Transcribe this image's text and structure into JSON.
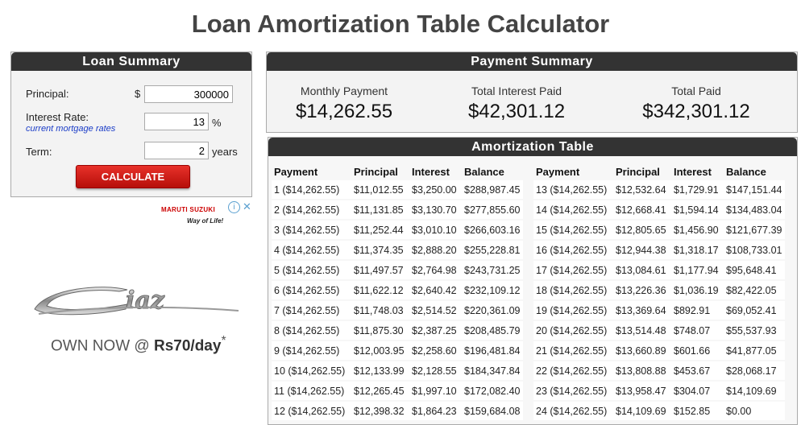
{
  "title": "Loan Amortization Table Calculator",
  "loan_summary": {
    "heading": "Loan Summary",
    "principal_label": "Principal:",
    "currency_symbol": "$",
    "principal_value": "300000",
    "interest_label": "Interest Rate:",
    "interest_link": "current mortgage rates",
    "interest_value": "13",
    "interest_unit": "%",
    "term_label": "Term:",
    "term_value": "2",
    "term_unit": "years",
    "calculate_label": "CALCULATE"
  },
  "payment_summary": {
    "heading": "Payment Summary",
    "monthly_label": "Monthly Payment",
    "monthly_value": "$14,262.55",
    "interest_label": "Total Interest Paid",
    "interest_value": "$42,301.12",
    "total_label": "Total Paid",
    "total_value": "$342,301.12"
  },
  "amortization": {
    "heading": "Amortization Table",
    "columns": [
      "Payment",
      "Principal",
      "Interest",
      "Balance"
    ],
    "left_rows": [
      [
        "1 ($14,262.55)",
        "$11,012.55",
        "$3,250.00",
        "$288,987.45"
      ],
      [
        "2 ($14,262.55)",
        "$11,131.85",
        "$3,130.70",
        "$277,855.60"
      ],
      [
        "3 ($14,262.55)",
        "$11,252.44",
        "$3,010.10",
        "$266,603.16"
      ],
      [
        "4 ($14,262.55)",
        "$11,374.35",
        "$2,888.20",
        "$255,228.81"
      ],
      [
        "5 ($14,262.55)",
        "$11,497.57",
        "$2,764.98",
        "$243,731.25"
      ],
      [
        "6 ($14,262.55)",
        "$11,622.12",
        "$2,640.42",
        "$232,109.12"
      ],
      [
        "7 ($14,262.55)",
        "$11,748.03",
        "$2,514.52",
        "$220,361.09"
      ],
      [
        "8 ($14,262.55)",
        "$11,875.30",
        "$2,387.25",
        "$208,485.79"
      ],
      [
        "9 ($14,262.55)",
        "$12,003.95",
        "$2,258.60",
        "$196,481.84"
      ],
      [
        "10 ($14,262.55)",
        "$12,133.99",
        "$2,128.55",
        "$184,347.84"
      ],
      [
        "11 ($14,262.55)",
        "$12,265.45",
        "$1,997.10",
        "$172,082.40"
      ],
      [
        "12 ($14,262.55)",
        "$12,398.32",
        "$1,864.23",
        "$159,684.08"
      ]
    ],
    "right_rows": [
      [
        "13 ($14,262.55)",
        "$12,532.64",
        "$1,729.91",
        "$147,151.44"
      ],
      [
        "14 ($14,262.55)",
        "$12,668.41",
        "$1,594.14",
        "$134,483.04"
      ],
      [
        "15 ($14,262.55)",
        "$12,805.65",
        "$1,456.90",
        "$121,677.39"
      ],
      [
        "16 ($14,262.55)",
        "$12,944.38",
        "$1,318.17",
        "$108,733.01"
      ],
      [
        "17 ($14,262.55)",
        "$13,084.61",
        "$1,177.94",
        "$95,648.41"
      ],
      [
        "18 ($14,262.55)",
        "$13,226.36",
        "$1,036.19",
        "$82,422.05"
      ],
      [
        "19 ($14,262.55)",
        "$13,369.64",
        "$892.91",
        "$69,052.41"
      ],
      [
        "20 ($14,262.55)",
        "$13,514.48",
        "$748.07",
        "$55,537.93"
      ],
      [
        "21 ($14,262.55)",
        "$13,660.89",
        "$601.66",
        "$41,877.05"
      ],
      [
        "22 ($14,262.55)",
        "$13,808.88",
        "$453.67",
        "$28,068.17"
      ],
      [
        "23 ($14,262.55)",
        "$13,958.47",
        "$304.07",
        "$14,109.69"
      ],
      [
        "24 ($14,262.55)",
        "$14,109.69",
        "$152.85",
        "$0.00"
      ]
    ]
  },
  "ad": {
    "brand": "MARUTI SUZUKI",
    "tagline": "Way of Life!",
    "own_prefix": "OWN NOW @ ",
    "own_price": "Rs70/day",
    "own_suffix": "*"
  }
}
